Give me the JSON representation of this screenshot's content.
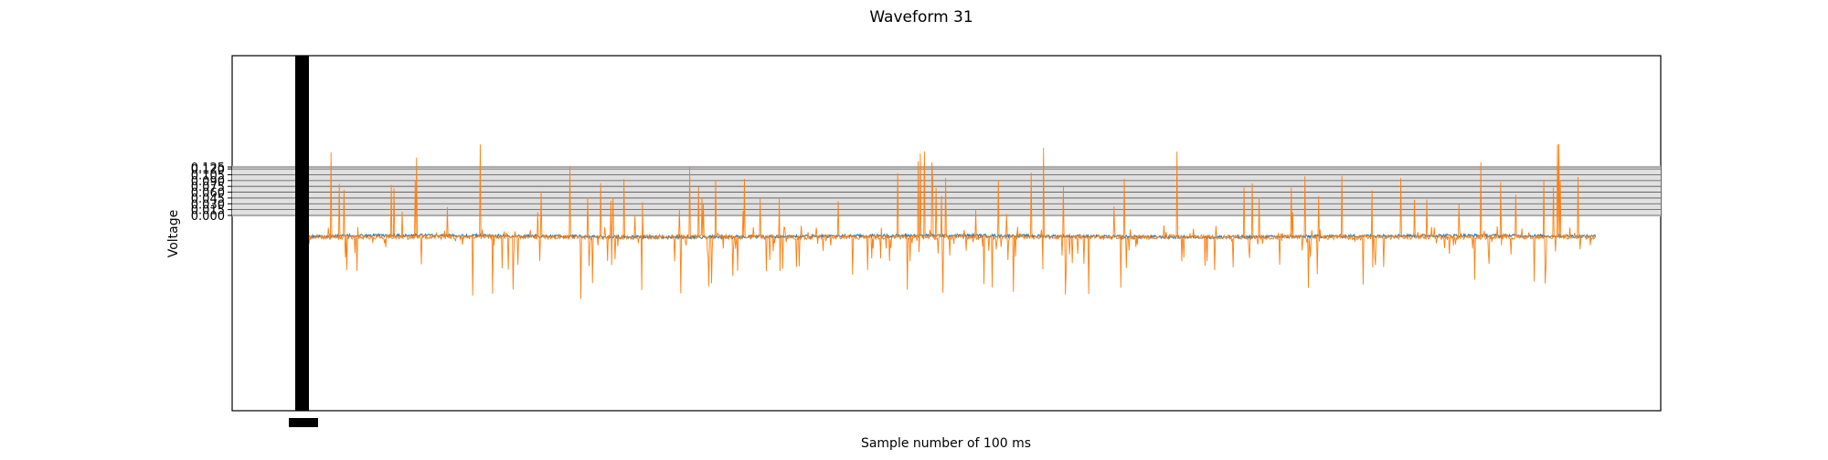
{
  "chart_data": {
    "type": "line",
    "title": "Waveform 31",
    "xlabel": "Sample number of 100 ms",
    "ylabel": "Voltage",
    "y_ticks": [
      "0.000",
      "0.015",
      "0.030",
      "0.045",
      "0.060",
      "0.075",
      "0.090",
      "0.105",
      "0.120",
      "0.125"
    ],
    "x_ticks_note": "dense overlapping sample-index tick labels (unreadable)",
    "n_samples": 1900,
    "grid": "horizontal grid at y ticks, shaded band",
    "series": [
      {
        "color": "#1f77b4",
        "baseline": -0.054,
        "noise_amplitude": 0.004
      },
      {
        "color": "#ff7f0e",
        "baseline": -0.056,
        "spike_max": 0.19,
        "spike_min": -0.16,
        "onset_transient": [
          0.08,
          -0.12
        ]
      }
    ]
  }
}
